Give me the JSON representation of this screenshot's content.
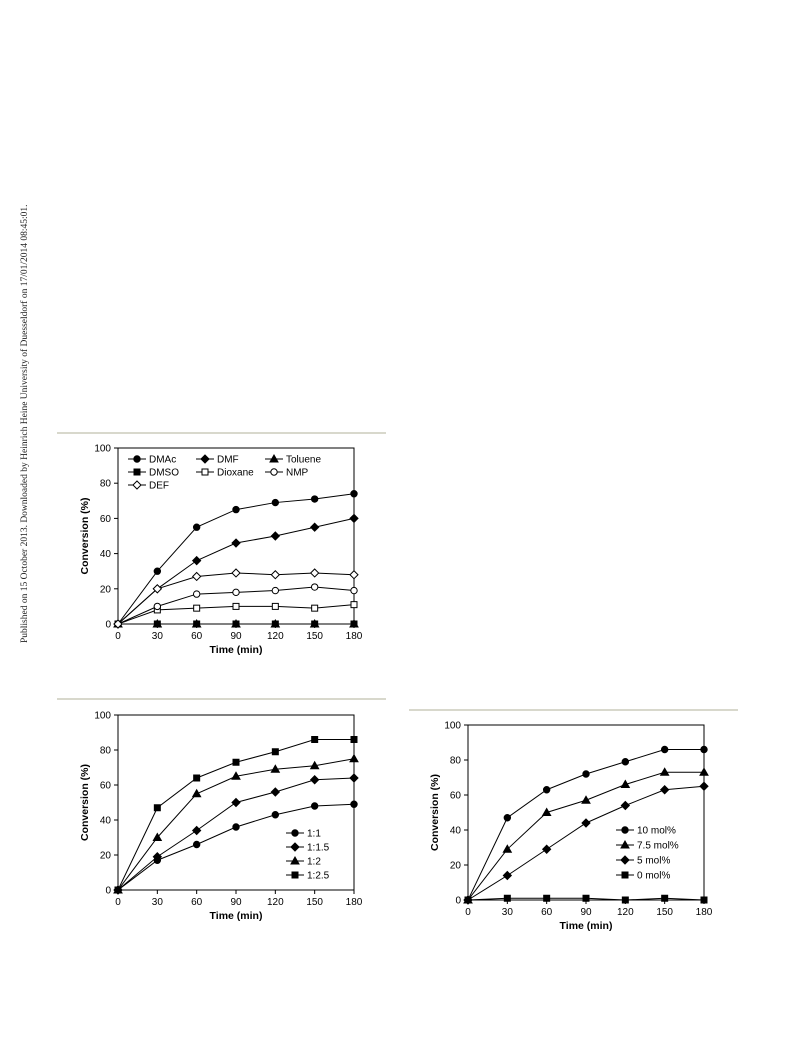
{
  "page": {
    "watermark": "Published on 15 October 2013. Downloaded by Heinrich Heine University of Duesseldorf on 17/01/2014 08:45:01."
  },
  "chart_data": [
    {
      "type": "line",
      "xlabel": "Time (min)",
      "ylabel": "Conversion (%)",
      "x": [
        0,
        30,
        60,
        90,
        120,
        150,
        180
      ],
      "xticks": [
        "0",
        "30",
        "60",
        "90",
        "120",
        "150",
        "180"
      ],
      "yticks": [
        "0",
        "20",
        "40",
        "60",
        "80",
        "100"
      ],
      "xlim": [
        0,
        180
      ],
      "ylim": [
        0,
        100
      ],
      "grid": false,
      "legend_position": "top",
      "series": [
        {
          "name": "DMAc",
          "marker": "circle-filled",
          "values": [
            0,
            30,
            55,
            65,
            69,
            71,
            74
          ]
        },
        {
          "name": "DMF",
          "marker": "diamond-filled",
          "values": [
            0,
            20,
            36,
            46,
            50,
            55,
            60
          ]
        },
        {
          "name": "Toluene",
          "marker": "triangle-filled",
          "values": [
            0,
            0,
            0,
            0,
            0,
            0,
            0
          ]
        },
        {
          "name": "DMSO",
          "marker": "square-filled",
          "values": [
            0,
            0,
            0,
            0,
            0,
            0,
            0
          ]
        },
        {
          "name": "Dioxane",
          "marker": "square-open",
          "values": [
            0,
            8,
            9,
            10,
            10,
            9,
            11
          ]
        },
        {
          "name": "NMP",
          "marker": "circle-open",
          "values": [
            0,
            10,
            17,
            18,
            19,
            21,
            19
          ]
        },
        {
          "name": "DEF",
          "marker": "diamond-open",
          "values": [
            0,
            20,
            27,
            29,
            28,
            29,
            28
          ]
        }
      ]
    },
    {
      "type": "line",
      "xlabel": "Time (min)",
      "ylabel": "Conversion (%)",
      "x": [
        0,
        30,
        60,
        90,
        120,
        150,
        180
      ],
      "xticks": [
        "0",
        "30",
        "60",
        "90",
        "120",
        "150",
        "180"
      ],
      "yticks": [
        "0",
        "20",
        "40",
        "60",
        "80",
        "100"
      ],
      "xlim": [
        0,
        180
      ],
      "ylim": [
        0,
        100
      ],
      "grid": false,
      "legend_position": "bottom-right",
      "series": [
        {
          "name": "1:1",
          "marker": "circle-filled",
          "values": [
            0,
            17,
            26,
            36,
            43,
            48,
            49
          ]
        },
        {
          "name": "1:1.5",
          "marker": "diamond-filled",
          "values": [
            0,
            19,
            34,
            50,
            56,
            63,
            64
          ]
        },
        {
          "name": "1:2",
          "marker": "triangle-filled",
          "values": [
            0,
            30,
            55,
            65,
            69,
            71,
            75
          ]
        },
        {
          "name": "1:2.5",
          "marker": "square-filled",
          "values": [
            0,
            47,
            64,
            73,
            79,
            86,
            86
          ]
        }
      ]
    },
    {
      "type": "line",
      "xlabel": "Time (min)",
      "ylabel": "Conversion (%)",
      "x": [
        0,
        30,
        60,
        90,
        120,
        150,
        180
      ],
      "xticks": [
        "0",
        "30",
        "60",
        "90",
        "120",
        "150",
        "180"
      ],
      "yticks": [
        "0",
        "20",
        "40",
        "60",
        "80",
        "100"
      ],
      "xlim": [
        0,
        180
      ],
      "ylim": [
        0,
        100
      ],
      "grid": false,
      "legend_position": "bottom-right",
      "series": [
        {
          "name": "10 mol%",
          "marker": "circle-filled",
          "values": [
            0,
            47,
            63,
            72,
            79,
            86,
            86
          ]
        },
        {
          "name": "7.5 mol%",
          "marker": "triangle-filled",
          "values": [
            0,
            29,
            50,
            57,
            66,
            73,
            73
          ]
        },
        {
          "name": "5 mol%",
          "marker": "diamond-filled",
          "values": [
            0,
            14,
            29,
            44,
            54,
            63,
            65
          ]
        },
        {
          "name": "0 mol%",
          "marker": "square-filled",
          "values": [
            0,
            1,
            1,
            1,
            0,
            1,
            0
          ]
        }
      ]
    }
  ]
}
